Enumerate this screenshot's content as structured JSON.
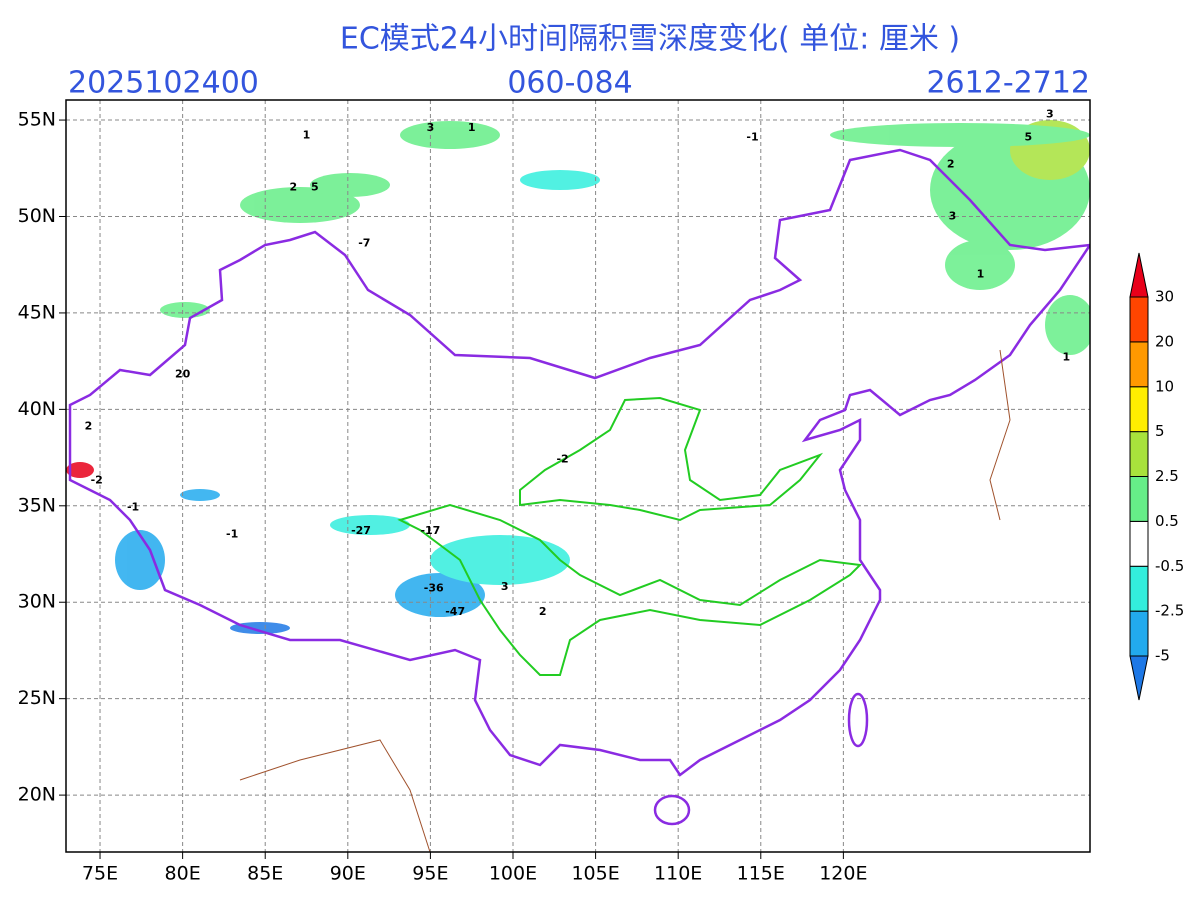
{
  "map": {
    "title": "EC模式24小时间隔积雪深度变化( 单位: 厘米 )",
    "init_time": "2025102400",
    "forecast_hours": "060-084",
    "valid_period": "2612-2712",
    "lonlim": [
      72.94,
      134.93
    ],
    "latlim": [
      17.05,
      56.04
    ],
    "lon_ticks": [
      {
        "value": 75,
        "label": "75E"
      },
      {
        "value": 80,
        "label": "80E"
      },
      {
        "value": 85,
        "label": "85E"
      },
      {
        "value": 90,
        "label": "90E"
      },
      {
        "value": 95,
        "label": "95E"
      },
      {
        "value": 100,
        "label": "100E"
      },
      {
        "value": 105,
        "label": "105E"
      },
      {
        "value": 110,
        "label": "110E"
      },
      {
        "value": 115,
        "label": "115E"
      },
      {
        "value": 120,
        "label": "120E"
      }
    ],
    "lat_ticks": [
      {
        "value": 20,
        "label": "20N"
      },
      {
        "value": 25,
        "label": "25N"
      },
      {
        "value": 30,
        "label": "30N"
      },
      {
        "value": 35,
        "label": "35N"
      },
      {
        "value": 40,
        "label": "40N"
      },
      {
        "value": 45,
        "label": "45N"
      },
      {
        "value": 50,
        "label": "50N"
      },
      {
        "value": 55,
        "label": "55N"
      }
    ],
    "grid": true,
    "colorbar": {
      "levels": [
        -5,
        -2.5,
        -0.5,
        0.5,
        2.5,
        5,
        10,
        20,
        30
      ],
      "colors": [
        "#1e78e6",
        "#22aaee",
        "#33eedd",
        "#ffffff",
        "#66ee88",
        "#a8e23c",
        "#ffee00",
        "#ff9900",
        "#ff4500",
        "#e8001a"
      ]
    },
    "station_labels": [
      {
        "text": "1",
        "lon": 87.5,
        "lat": 54.2
      },
      {
        "text": "3",
        "lon": 95,
        "lat": 54.6
      },
      {
        "text": "1",
        "lon": 97.5,
        "lat": 54.6
      },
      {
        "text": "2",
        "lon": 86.7,
        "lat": 51.5
      },
      {
        "text": "5",
        "lon": 88,
        "lat": 51.5
      },
      {
        "text": "-7",
        "lon": 91,
        "lat": 48.6
      },
      {
        "text": "20",
        "lon": 80,
        "lat": 41.8
      },
      {
        "text": "2",
        "lon": 74.3,
        "lat": 39.1
      },
      {
        "text": "-2",
        "lon": 74.8,
        "lat": 36.3
      },
      {
        "text": "-1",
        "lon": 77,
        "lat": 34.9
      },
      {
        "text": "-2",
        "lon": 103,
        "lat": 37.4
      },
      {
        "text": "-17",
        "lon": 95,
        "lat": 33.7
      },
      {
        "text": "-27",
        "lon": 90.8,
        "lat": 33.7
      },
      {
        "text": "-36",
        "lon": 95.2,
        "lat": 30.7
      },
      {
        "text": "-47",
        "lon": 96.5,
        "lat": 29.5
      },
      {
        "text": "3",
        "lon": 99.5,
        "lat": 30.8
      },
      {
        "text": "2",
        "lon": 101.8,
        "lat": 29.5
      },
      {
        "text": "-1",
        "lon": 83,
        "lat": 33.5
      },
      {
        "text": "-1",
        "lon": 114.5,
        "lat": 54.1
      },
      {
        "text": "5",
        "lon": 131.2,
        "lat": 54.1
      },
      {
        "text": "3",
        "lon": 132.5,
        "lat": 55.3
      },
      {
        "text": "2",
        "lon": 126.5,
        "lat": 52.7
      },
      {
        "text": "3",
        "lon": 126.6,
        "lat": 50
      },
      {
        "text": "1",
        "lon": 128.3,
        "lat": 47
      },
      {
        "text": "1",
        "lon": 133.5,
        "lat": 42.7
      }
    ]
  }
}
